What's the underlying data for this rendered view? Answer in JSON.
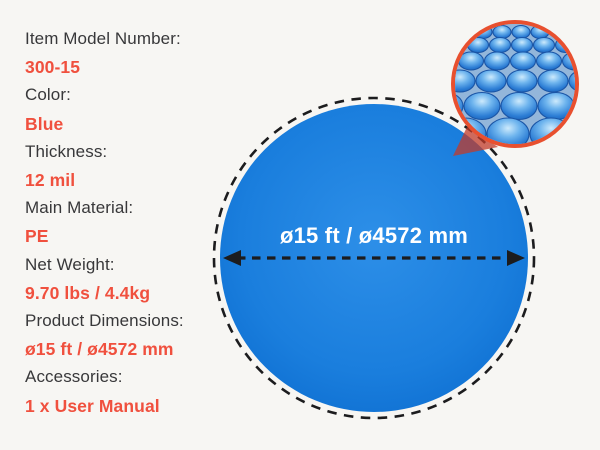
{
  "title": "Pool cover product specification infographic",
  "colors": {
    "background": "#f7f6f3",
    "label_text": "#38383a",
    "value_text": "#f0503e",
    "cover_blue": "#1b80de",
    "outline_black": "#1c1c1e",
    "detail_border": "#e8502f",
    "wedge_red": "#c23b2a",
    "diameter_text": "#ffffff"
  },
  "specs": {
    "items": [
      {
        "label": "Item Model Number:",
        "value": "300-15"
      },
      {
        "label": "Color:",
        "value": "Blue"
      },
      {
        "label": "Thickness:",
        "value": "12 mil"
      },
      {
        "label": "Main Material:",
        "value": "PE"
      },
      {
        "label": "Net Weight:",
        "value": "9.70 lbs / 4.4kg"
      },
      {
        "label": "Product Dimensions:",
        "value": "ø15 ft / ø4572 mm"
      },
      {
        "label": "Accessories:",
        "value": "1 x User Manual"
      }
    ]
  },
  "diagram": {
    "diameter_label": "ø15 ft / ø4572 mm"
  }
}
